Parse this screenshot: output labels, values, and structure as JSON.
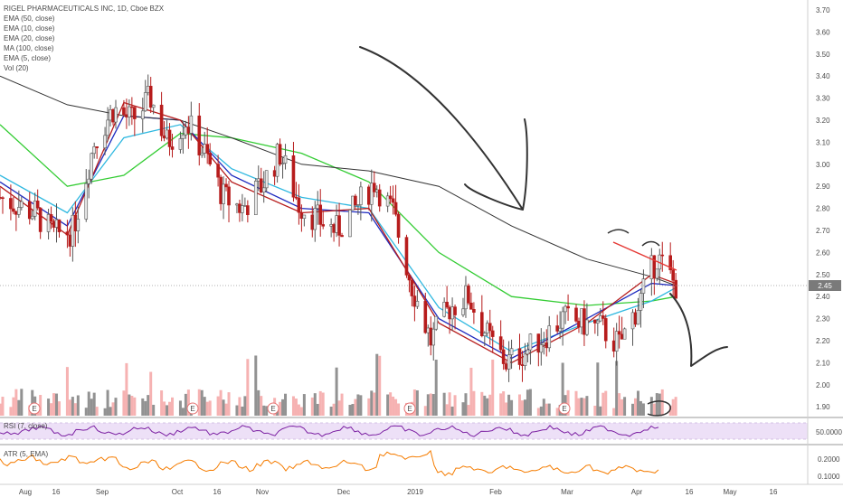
{
  "header": {
    "title": "RIGEL PHARMACEUTICALS INC, 1D, Cboe BZX"
  },
  "legend": [
    "EMA (50, close)",
    "EMA (10, close)",
    "EMA (20, close)",
    "MA (100, close)",
    "EMA (5, close)",
    "Vol (20)"
  ],
  "price_axis": {
    "ticks": [
      "3.70",
      "3.60",
      "3.50",
      "3.40",
      "3.30",
      "3.20",
      "3.10",
      "3.00",
      "2.90",
      "2.80",
      "2.70",
      "2.60",
      "2.50",
      "2.40",
      "2.30",
      "2.20",
      "2.10",
      "2.00",
      "1.90"
    ],
    "last_price": "2.45",
    "last_price_value": 2.45
  },
  "rsi_panel": {
    "label": "RSI (7, close)",
    "tick": "50.0000"
  },
  "atr_panel": {
    "label": "ATR (5, EMA)",
    "ticks": [
      "0.2000",
      "0.1000"
    ]
  },
  "time_axis": {
    "labels": [
      "Aug",
      "16",
      "Sep",
      "Oct",
      "16",
      "Nov",
      "Dec",
      "2019",
      "Feb",
      "Mar",
      "Apr",
      "16",
      "May",
      "16"
    ]
  },
  "event_markers": [
    {
      "label": "E"
    },
    {
      "label": "E"
    },
    {
      "label": "E"
    },
    {
      "label": "E"
    },
    {
      "label": "E"
    }
  ],
  "colors": {
    "up": "#e8e8e8",
    "up_border": "#555555",
    "down": "#b71c1c",
    "ema50": "#33cc33",
    "ema10": "#1f2bbf",
    "ema20": "#2fb8e0",
    "ma100": "#333333",
    "ema5": "#b71c1c",
    "vol_up": "#7f7f7f",
    "vol_down": "#f4a4a4",
    "rsi": "#7b1fa2",
    "rsi_band": "#ede0f7",
    "atr": "#f57c00",
    "annotation": "#333333",
    "trendline": "#e53935"
  },
  "chart_data": {
    "type": "candlestick",
    "title": "RIGEL PHARMACEUTICALS INC, 1D, Cboe BZX",
    "ylim": [
      1.85,
      3.72
    ],
    "x_range_days": [
      "2018-07-26",
      "2019-05-22"
    ],
    "last_price": 2.45,
    "series": [
      {
        "name": "EMA (50, close)",
        "x": [
          "2018-07-26",
          "2018-08-20",
          "2018-09-10",
          "2018-10-01",
          "2018-10-20",
          "2018-11-15",
          "2018-12-10",
          "2019-01-05",
          "2019-02-01",
          "2019-03-01",
          "2019-03-25",
          "2019-04-03"
        ],
        "values": [
          3.18,
          2.9,
          2.95,
          3.14,
          3.12,
          3.05,
          2.92,
          2.6,
          2.4,
          2.36,
          2.38,
          2.4
        ]
      },
      {
        "name": "EMA (20, close)",
        "x": [
          "2018-07-26",
          "2018-08-20",
          "2018-09-10",
          "2018-10-01",
          "2018-10-20",
          "2018-11-15",
          "2018-12-10",
          "2019-01-05",
          "2019-02-01",
          "2019-03-01",
          "2019-03-25",
          "2019-04-03"
        ],
        "values": [
          2.95,
          2.78,
          3.12,
          3.18,
          2.98,
          2.85,
          2.8,
          2.35,
          2.15,
          2.28,
          2.38,
          2.44
        ]
      },
      {
        "name": "EMA (10, close)",
        "x": [
          "2018-07-26",
          "2018-08-20",
          "2018-09-10",
          "2018-10-01",
          "2018-10-20",
          "2018-11-15",
          "2018-12-10",
          "2019-01-05",
          "2019-02-01",
          "2019-03-01",
          "2019-03-25",
          "2019-04-03"
        ],
        "values": [
          2.92,
          2.72,
          3.22,
          3.2,
          2.95,
          2.8,
          2.78,
          2.3,
          2.12,
          2.3,
          2.46,
          2.45
        ]
      },
      {
        "name": "MA (100, close)",
        "x": [
          "2018-07-26",
          "2018-08-20",
          "2018-09-10",
          "2018-10-01",
          "2018-10-20",
          "2018-11-15",
          "2018-12-10",
          "2019-01-05",
          "2019-02-01",
          "2019-03-01",
          "2019-03-25",
          "2019-04-03"
        ],
        "values": [
          3.4,
          3.27,
          3.22,
          3.2,
          3.12,
          3.0,
          2.97,
          2.9,
          2.72,
          2.57,
          2.49,
          2.45
        ]
      },
      {
        "name": "EMA (5, close)",
        "x": [
          "2018-07-26",
          "2018-08-20",
          "2018-09-10",
          "2018-10-01",
          "2018-10-20",
          "2018-11-15",
          "2018-12-10",
          "2019-01-05",
          "2019-02-01",
          "2019-03-01",
          "2019-03-25",
          "2019-04-03"
        ],
        "values": [
          2.9,
          2.68,
          3.28,
          3.2,
          2.92,
          2.78,
          2.8,
          2.28,
          2.1,
          2.28,
          2.5,
          2.46
        ]
      }
    ],
    "price_path": {
      "x": [
        "2018-07-26",
        "2018-08-08",
        "2018-08-15",
        "2018-08-22",
        "2018-08-30",
        "2018-09-06",
        "2018-09-13",
        "2018-09-20",
        "2018-09-26",
        "2018-10-03",
        "2018-10-10",
        "2018-10-17",
        "2018-10-24",
        "2018-10-31",
        "2018-11-07",
        "2018-11-14",
        "2018-11-21",
        "2018-11-28",
        "2018-12-05",
        "2018-12-12",
        "2018-12-19",
        "2018-12-26",
        "2019-01-02",
        "2019-01-09",
        "2019-01-16",
        "2019-01-23",
        "2019-01-30",
        "2019-02-06",
        "2019-02-13",
        "2019-02-20",
        "2019-02-27",
        "2019-03-06",
        "2019-03-13",
        "2019-03-20",
        "2019-03-27",
        "2019-04-03"
      ],
      "values": [
        2.85,
        2.78,
        2.68,
        2.7,
        3.1,
        3.25,
        3.2,
        3.3,
        3.1,
        3.2,
        3.05,
        2.85,
        2.8,
        2.9,
        3.05,
        2.82,
        2.75,
        2.7,
        2.8,
        2.92,
        2.78,
        2.45,
        2.2,
        2.35,
        2.4,
        2.22,
        2.1,
        2.15,
        2.22,
        2.3,
        2.28,
        2.26,
        2.18,
        2.36,
        2.58,
        2.45
      ]
    },
    "indicators": {
      "rsi_tick": 50,
      "atr_ticks": [
        0.2,
        0.1
      ]
    },
    "xlabels": [
      "Aug",
      "16",
      "Sep",
      "Oct",
      "16",
      "Nov",
      "Dec",
      "2019",
      "Feb",
      "Mar",
      "Apr",
      "16",
      "May",
      "16"
    ]
  }
}
